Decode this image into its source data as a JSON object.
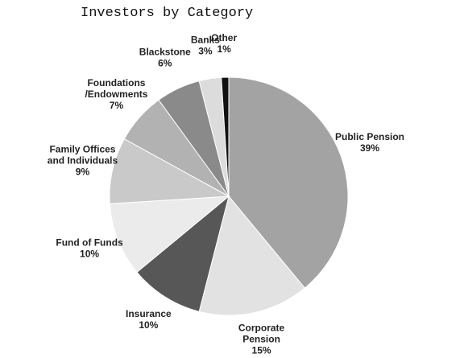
{
  "chart_data": {
    "type": "pie",
    "title": "Investors by Category",
    "categories": [
      "Public Pension",
      "Corporate\nPension",
      "Insurance",
      "Fund of Funds",
      "Family Offices\nand Individuals",
      "Foundations\n/Endowments",
      "Blackstone",
      "Banks",
      "Other"
    ],
    "values": [
      39,
      15,
      10,
      10,
      9,
      7,
      6,
      3,
      1
    ],
    "value_labels": [
      "39%",
      "15%",
      "10%",
      "10%",
      "9%",
      "7%",
      "6%",
      "3%",
      "1%"
    ],
    "colors": [
      "#a3a3a3",
      "#e2e2e2",
      "#575757",
      "#ebebeb",
      "#c9c9c9",
      "#b2b2b2",
      "#8a8a8a",
      "#dcdcdc",
      "#111111"
    ]
  }
}
